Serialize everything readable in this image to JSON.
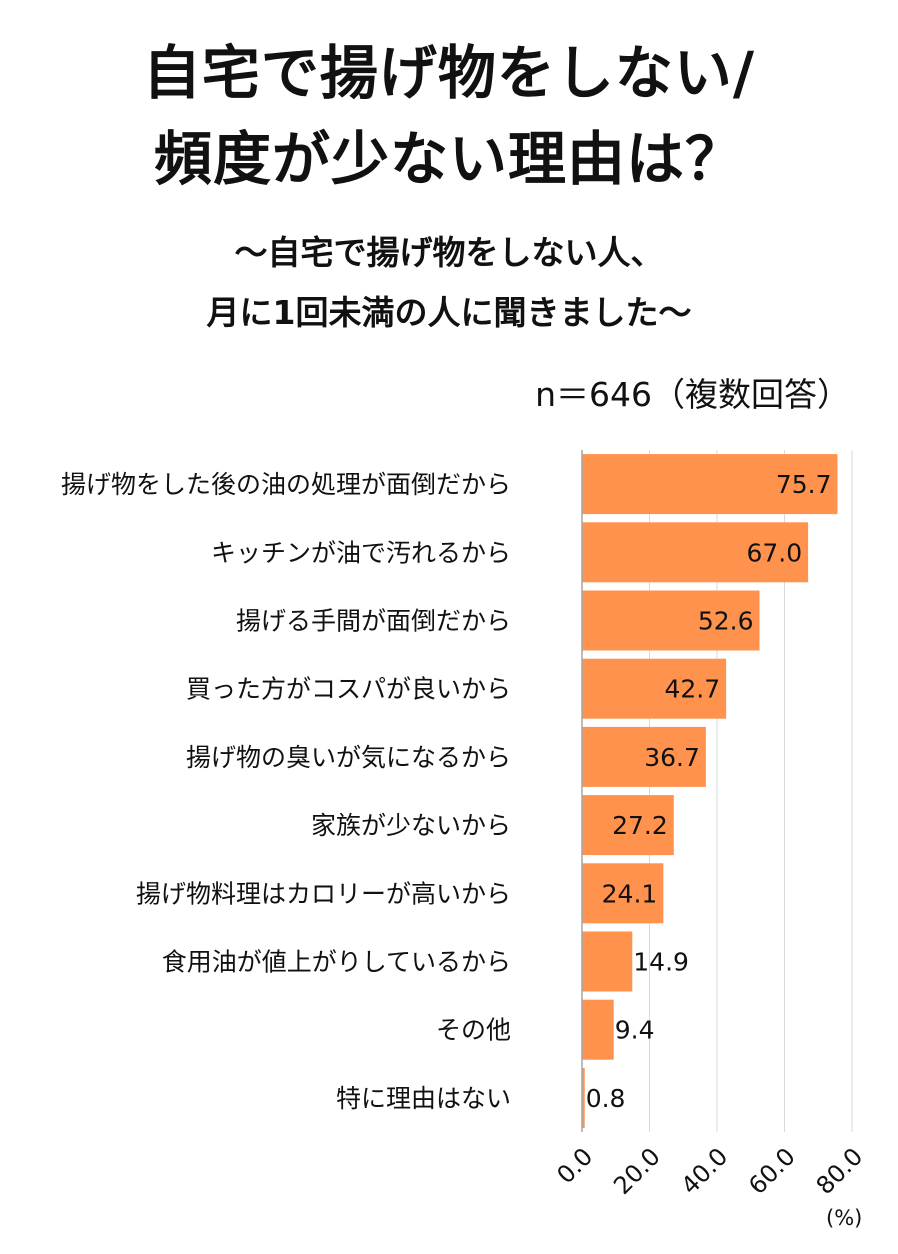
{
  "title_line1": "自宅で揚げ物をしない/",
  "title_line2": "頻度が少ない理由は？",
  "subtitle_line1": "〜自宅で揚げ物をしない人、",
  "subtitle_line2": "月に1回未満の人に聞きました〜",
  "sample_note": "n＝646（複数回答）",
  "colors": {
    "bar": "#FF924C",
    "grid": "#d9d9d9",
    "axis": "#a6a6a6",
    "text": "#111111"
  },
  "chart_data": {
    "type": "bar",
    "orientation": "horizontal",
    "categories": [
      "揚げ物をした後の油の処理が面倒だから",
      "キッチンが油で汚れるから",
      "揚げる手間が面倒だから",
      "買った方がコスパが良いから",
      "揚げ物の臭いが気になるから",
      "家族が少ないから",
      "揚げ物料理はカロリーが高いから",
      "食用油が値上がりしているから",
      "その他",
      "特に理由はない"
    ],
    "values": [
      75.7,
      67.0,
      52.6,
      42.7,
      36.7,
      27.2,
      24.1,
      14.9,
      9.4,
      0.8
    ],
    "value_labels": [
      "75.7",
      "67.0",
      "52.6",
      "42.7",
      "36.7",
      "27.2",
      "24.1",
      "14.9",
      "9.4",
      "0.8"
    ],
    "xlim": [
      0,
      80
    ],
    "xticks": [
      0,
      20,
      40,
      60,
      80
    ],
    "xtick_labels": [
      "0.0",
      "20.0",
      "40.0",
      "60.0",
      "80.0"
    ],
    "x_unit": "(%)",
    "grid": true,
    "legend": "none"
  }
}
